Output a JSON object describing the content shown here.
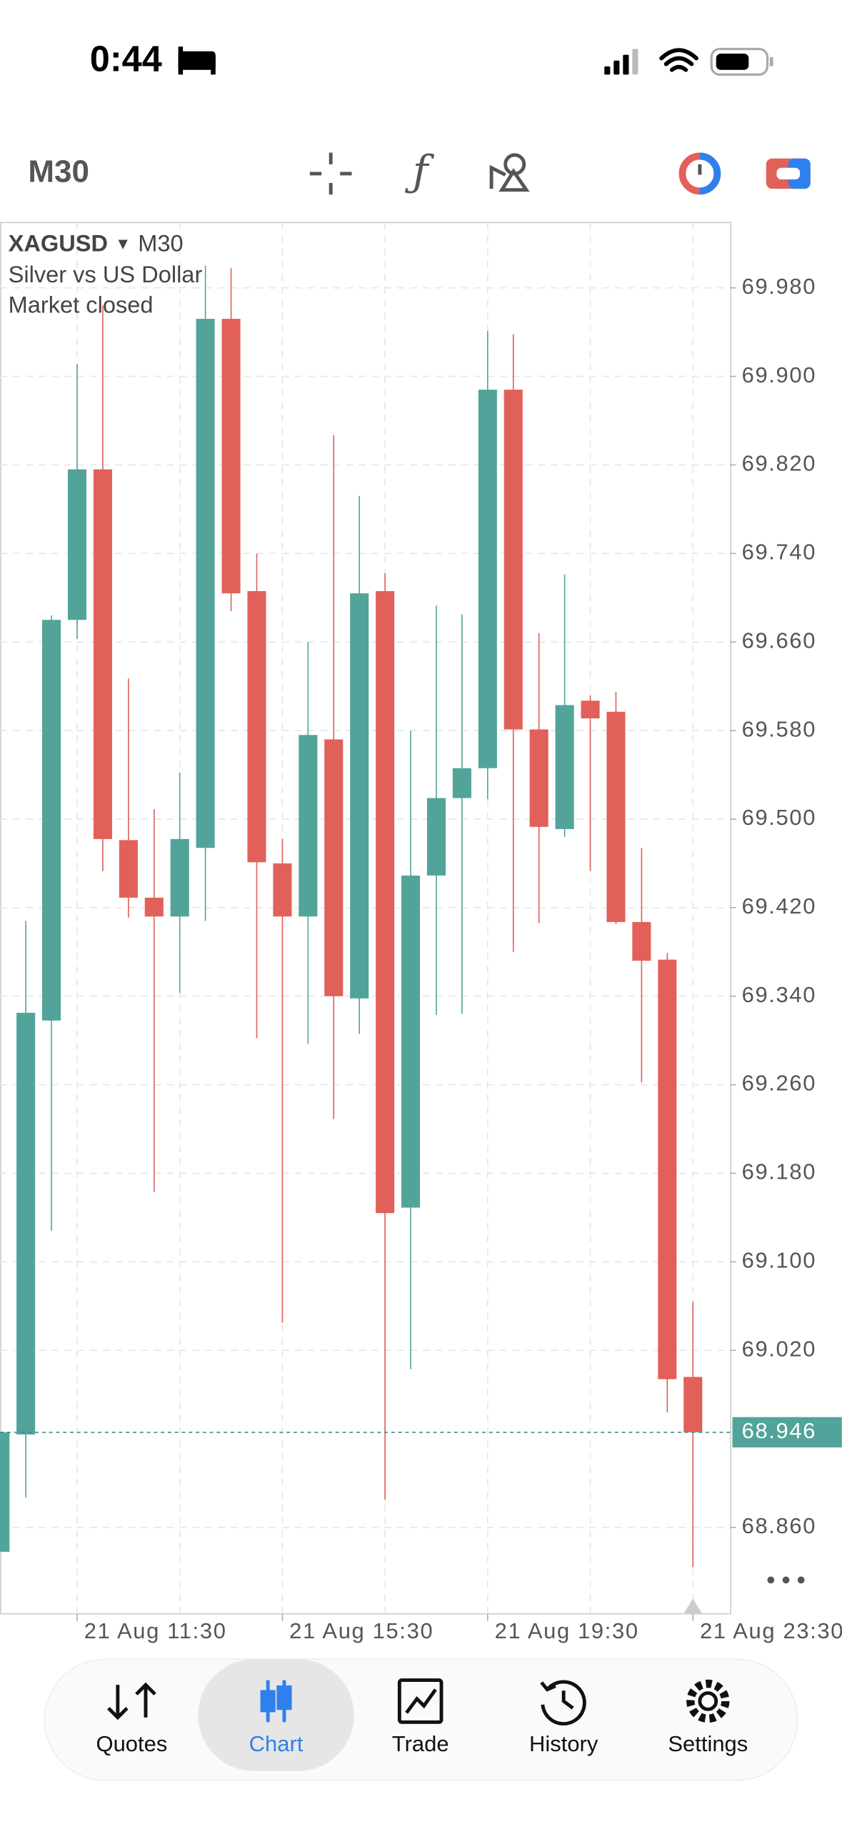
{
  "status_bar": {
    "time": "0:44"
  },
  "toolbar": {
    "timeframe": "M30"
  },
  "chart_data": {
    "type": "candlestick",
    "symbol": "XAGUSD",
    "timeframe": "M30",
    "subtitle": "Silver vs US Dollar",
    "status": "Market closed",
    "categories": [
      null,
      null,
      null,
      "21 Aug 11:30",
      null,
      null,
      null,
      null,
      null,
      null,
      null,
      "21 Aug 15:30",
      null,
      null,
      null,
      null,
      null,
      null,
      null,
      "21 Aug 19:30",
      null,
      null,
      null,
      null,
      null,
      null,
      null,
      "21 Aug 23:30"
    ],
    "open": [
      68.838,
      68.944,
      69.318,
      69.68,
      69.816,
      69.481,
      69.429,
      69.412,
      69.474,
      69.952,
      69.706,
      69.46,
      69.412,
      69.572,
      69.338,
      69.706,
      69.149,
      69.449,
      69.519,
      69.546,
      69.888,
      69.581,
      69.491,
      69.607,
      69.597,
      69.407,
      69.373,
      68.996
    ],
    "high": [
      68.946,
      69.408,
      69.684,
      69.911,
      69.964,
      69.627,
      69.509,
      69.542,
      70.0,
      69.998,
      69.74,
      69.482,
      69.66,
      69.847,
      69.792,
      69.722,
      69.58,
      69.693,
      69.685,
      69.941,
      69.938,
      69.668,
      69.721,
      69.612,
      69.615,
      69.474,
      69.379,
      69.064
    ],
    "low": [
      68.838,
      68.887,
      69.128,
      69.663,
      69.453,
      69.411,
      69.163,
      69.343,
      69.408,
      69.688,
      69.302,
      69.045,
      69.297,
      69.229,
      69.306,
      68.885,
      69.003,
      69.323,
      69.324,
      69.518,
      69.38,
      69.406,
      69.484,
      69.453,
      69.405,
      69.262,
      68.964,
      68.824
    ],
    "close": [
      68.946,
      69.325,
      69.68,
      69.816,
      69.482,
      69.429,
      69.412,
      69.482,
      69.952,
      69.704,
      69.461,
      69.412,
      69.576,
      69.34,
      69.704,
      69.144,
      69.449,
      69.519,
      69.546,
      69.888,
      69.581,
      69.493,
      69.603,
      69.591,
      69.407,
      69.372,
      68.994,
      68.946
    ],
    "up_color": "#52a49a",
    "down_color": "#e2605a",
    "ylim": [
      68.782,
      70.039
    ],
    "yticks": [
      {
        "value": 69.98,
        "label": "69.980"
      },
      {
        "value": 69.9,
        "label": "69.900"
      },
      {
        "value": 69.82,
        "label": "69.820"
      },
      {
        "value": 69.74,
        "label": "69.740"
      },
      {
        "value": 69.66,
        "label": "69.660"
      },
      {
        "value": 69.58,
        "label": "69.580"
      },
      {
        "value": 69.5,
        "label": "69.500"
      },
      {
        "value": 69.42,
        "label": "69.420"
      },
      {
        "value": 69.34,
        "label": "69.340"
      },
      {
        "value": 69.26,
        "label": "69.260"
      },
      {
        "value": 69.18,
        "label": "69.180"
      },
      {
        "value": 69.1,
        "label": "69.100"
      },
      {
        "value": 69.02,
        "label": "69.020"
      },
      {
        "value": 68.86,
        "label": "68.860"
      }
    ],
    "last_price": 68.946,
    "grid": true
  },
  "tab_bar": {
    "tabs": [
      "Quotes",
      "Chart",
      "Trade",
      "History",
      "Settings"
    ],
    "active": 1
  }
}
